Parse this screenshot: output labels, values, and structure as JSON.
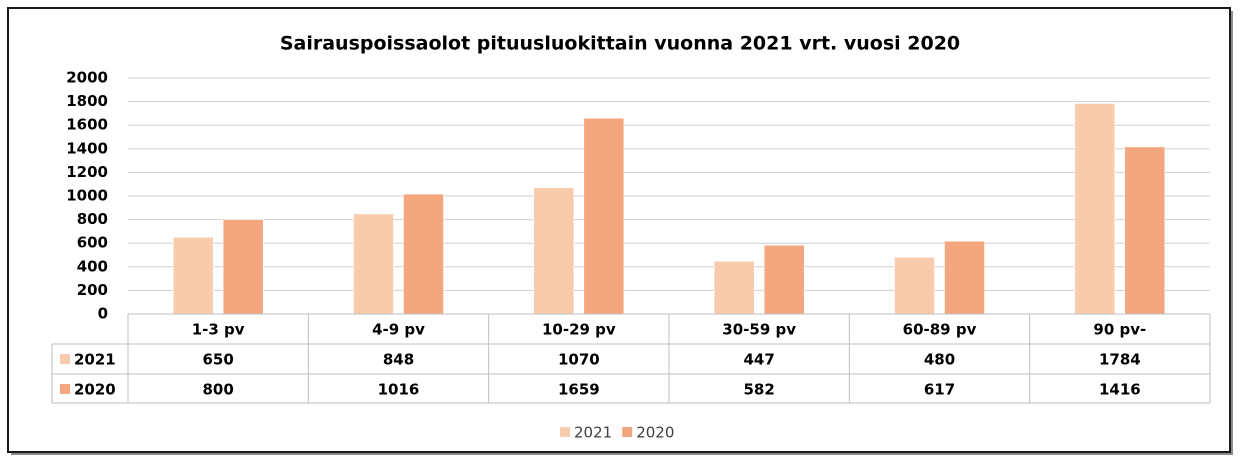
{
  "chart_data": {
    "type": "bar",
    "title": "Sairauspoissaolot pituusluokittain vuonna 2021 vrt. vuosi 2020",
    "categories": [
      "1-3 pv",
      "4-9 pv",
      "10-29 pv",
      "30-59 pv",
      "60-89 pv",
      "90 pv-"
    ],
    "series": [
      {
        "name": "2021",
        "color": "#f8cbad",
        "values": [
          650,
          848,
          1070,
          447,
          480,
          1784
        ]
      },
      {
        "name": "2020",
        "color": "#f4a67f",
        "values": [
          800,
          1016,
          1659,
          582,
          617,
          1416
        ]
      }
    ],
    "ylim": [
      0,
      2000
    ],
    "yticks": [
      0,
      200,
      400,
      600,
      800,
      1000,
      1200,
      1400,
      1600,
      1800,
      2000
    ],
    "grid": true,
    "data_table": true,
    "legend": "bottom"
  }
}
